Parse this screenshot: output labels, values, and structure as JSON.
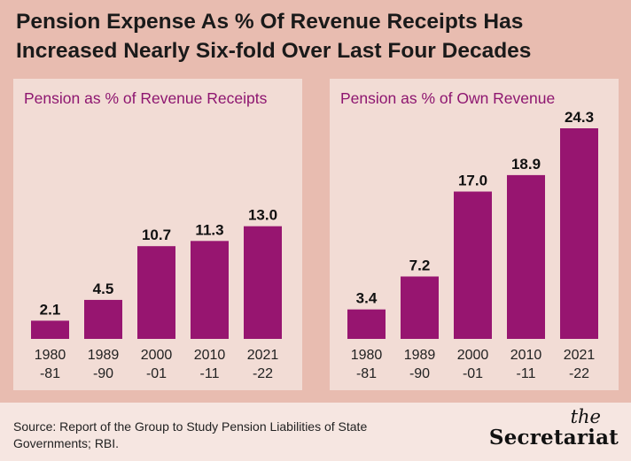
{
  "title": "Pension Expense As % Of Revenue Receipts Has Increased Nearly Six-fold Over Last Four Decades",
  "source": "Source: Report of the Group to Study Pension Liabilities of State Governments; RBI.",
  "logo": {
    "line1": "the",
    "line2": "Secretariat"
  },
  "colors": {
    "bar": "#971570",
    "title_accent": "#8e1670",
    "background": "#e8bcb0",
    "panel": "#f2dcd5"
  },
  "chart_data": [
    {
      "type": "bar",
      "title": "Pension as % of Revenue Receipts",
      "categories": [
        [
          "1980",
          "-81"
        ],
        [
          "1989",
          "-90"
        ],
        [
          "2000",
          "-01"
        ],
        [
          "2010",
          "-11"
        ],
        [
          "2021",
          "-22"
        ]
      ],
      "values": [
        2.1,
        4.5,
        10.7,
        11.3,
        13.0
      ],
      "value_labels": [
        "2.1",
        "4.5",
        "10.7",
        "11.3",
        "13.0"
      ],
      "ylim": [
        0,
        24.3
      ]
    },
    {
      "type": "bar",
      "title": "Pension as % of Own Revenue",
      "categories": [
        [
          "1980",
          "-81"
        ],
        [
          "1989",
          "-90"
        ],
        [
          "2000",
          "-01"
        ],
        [
          "2010",
          "-11"
        ],
        [
          "2021",
          "-22"
        ]
      ],
      "values": [
        3.4,
        7.2,
        17.0,
        18.9,
        24.3
      ],
      "value_labels": [
        "3.4",
        "7.2",
        "17.0",
        "18.9",
        "24.3"
      ],
      "ylim": [
        0,
        24.3
      ]
    }
  ]
}
